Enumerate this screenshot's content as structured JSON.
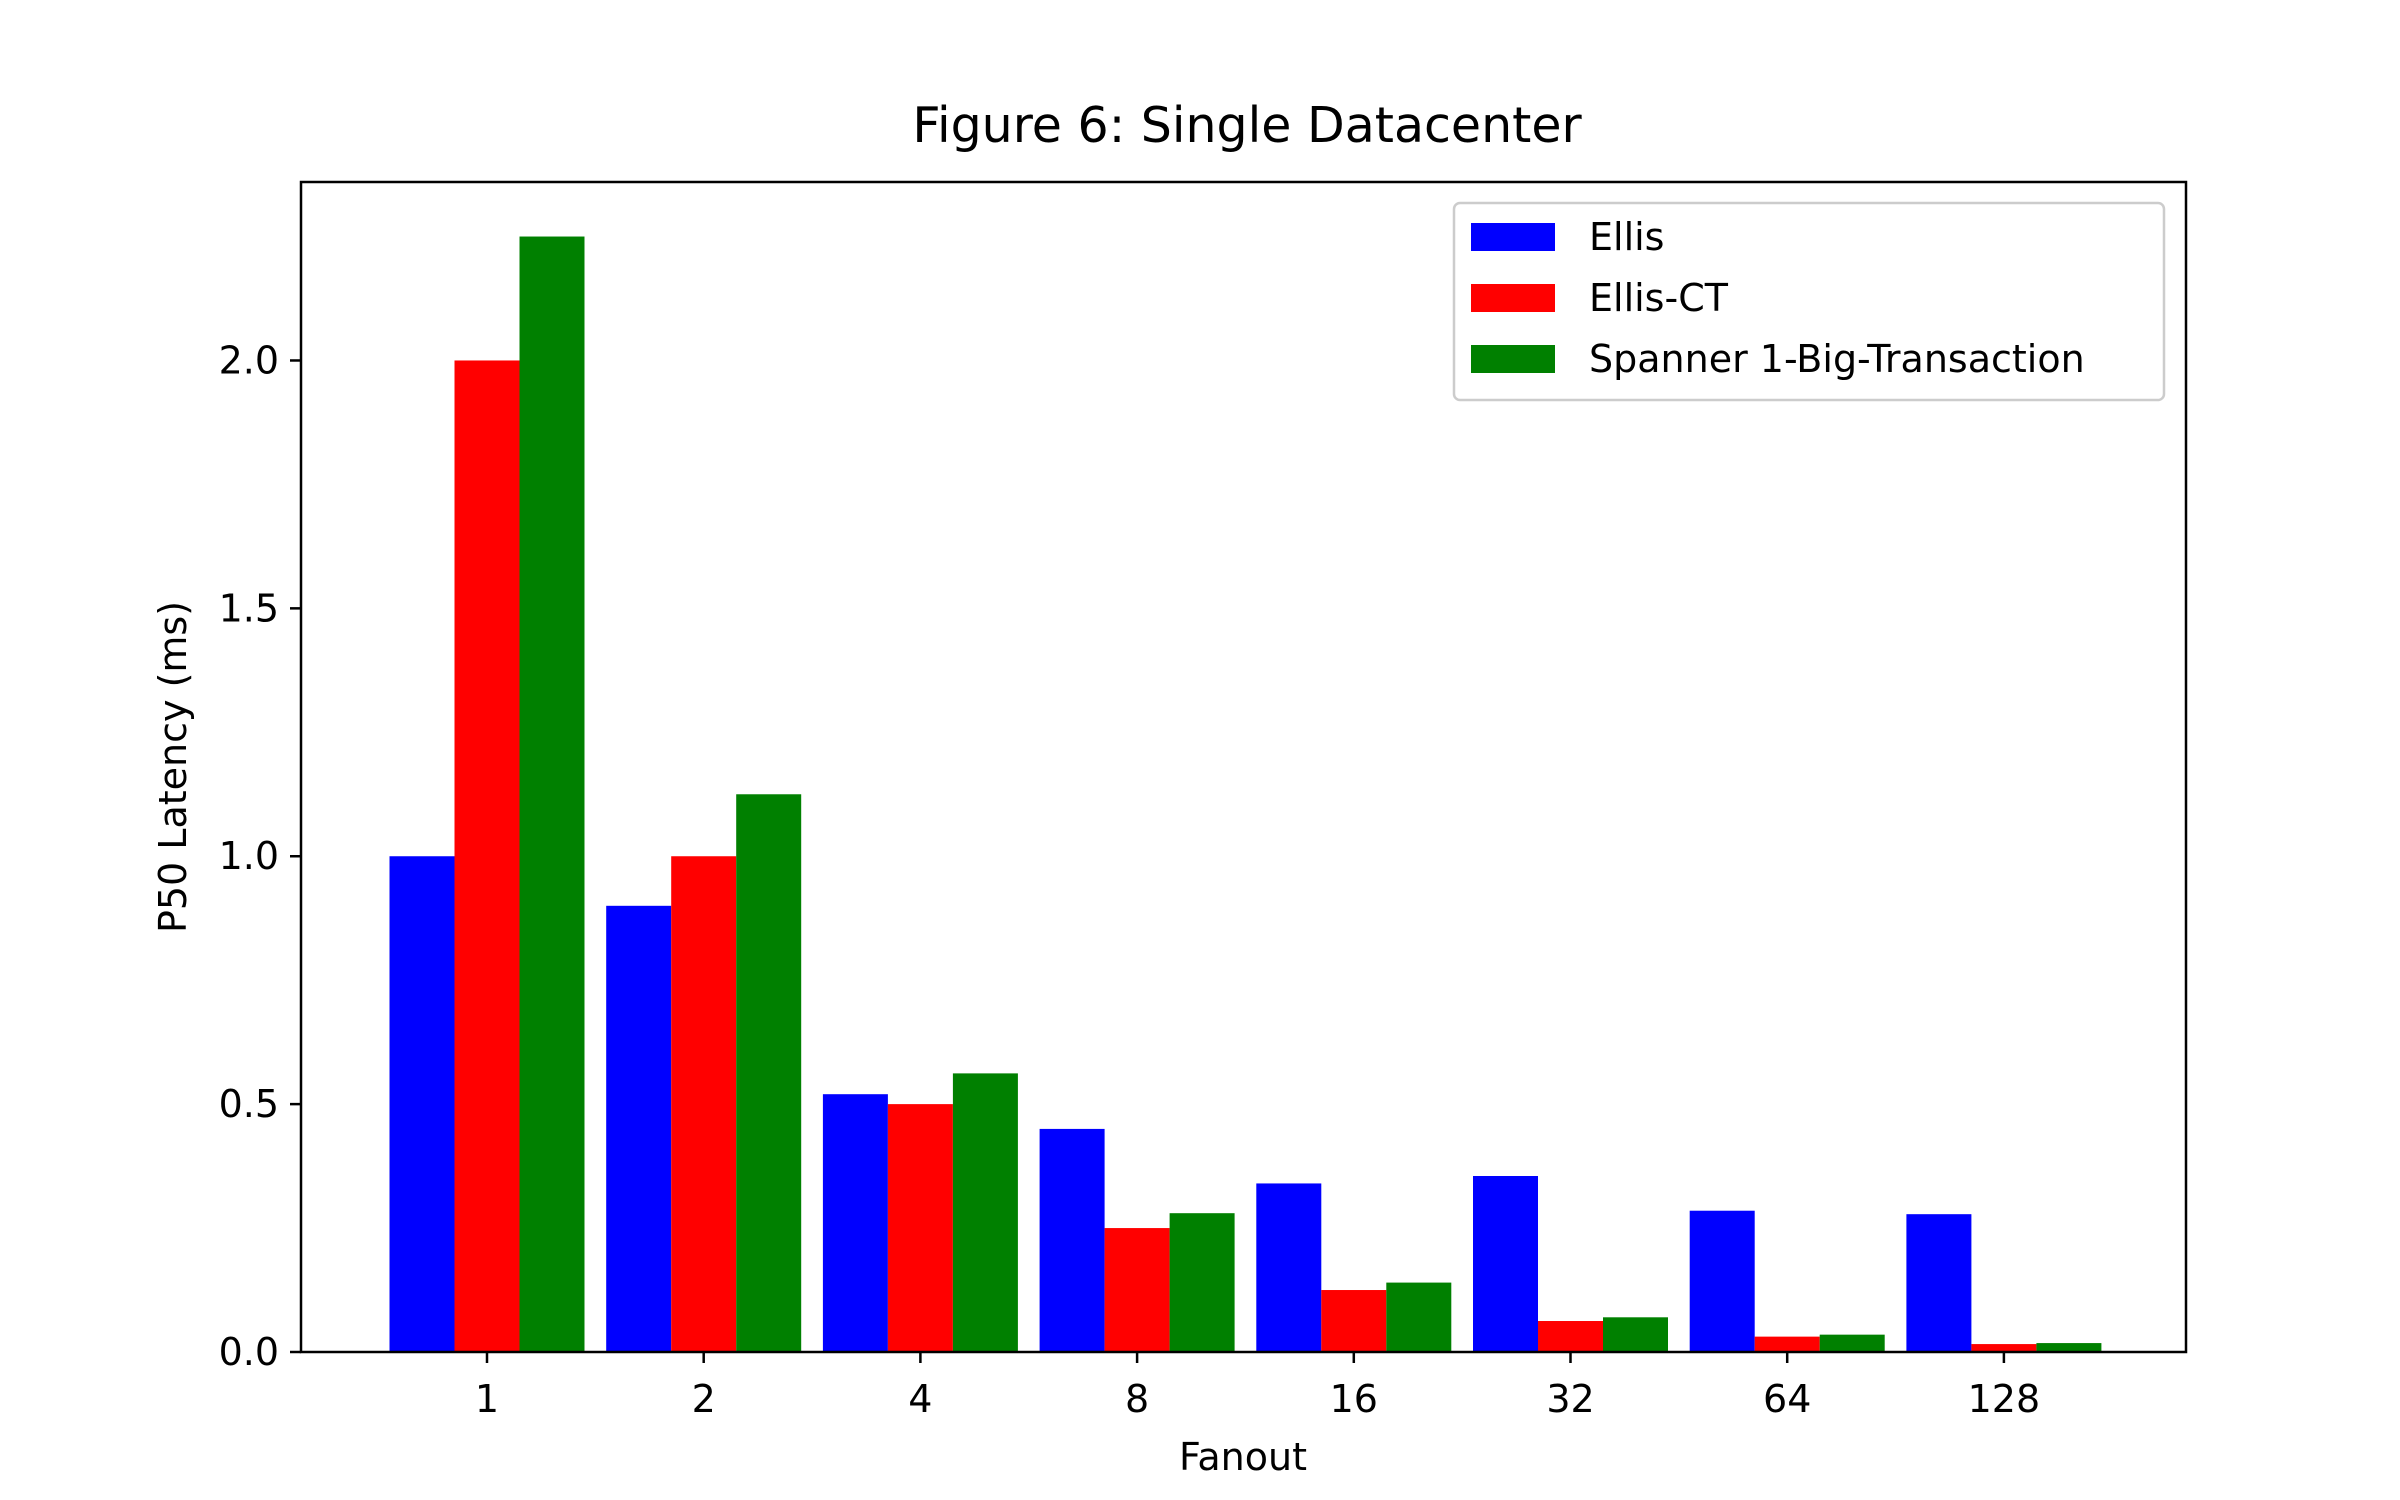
{
  "chart_data": {
    "type": "bar",
    "title": "Figure 6: Single Datacenter",
    "xlabel": "Fanout",
    "ylabel": "P50 Latency (ms)",
    "categories": [
      "1",
      "2",
      "4",
      "8",
      "16",
      "32",
      "64",
      "128"
    ],
    "ylim": [
      0,
      2.36
    ],
    "yticks": [
      0.0,
      0.5,
      1.0,
      1.5,
      2.0
    ],
    "ytick_labels": [
      "0.0",
      "0.5",
      "1.0",
      "1.5",
      "2.0"
    ],
    "grid": false,
    "legend_position": "top-right",
    "series": [
      {
        "name": "Ellis",
        "color": "#0000ff",
        "values": [
          1.0,
          0.9,
          0.52,
          0.45,
          0.34,
          0.355,
          0.285,
          0.278
        ]
      },
      {
        "name": "Ellis-CT",
        "color": "#ff0000",
        "values": [
          2.0,
          1.0,
          0.5,
          0.25,
          0.125,
          0.0625,
          0.031,
          0.016
        ]
      },
      {
        "name": "Spanner 1-Big-Transaction",
        "color": "#008000",
        "values": [
          2.25,
          1.125,
          0.562,
          0.28,
          0.14,
          0.07,
          0.035,
          0.018
        ]
      }
    ]
  }
}
